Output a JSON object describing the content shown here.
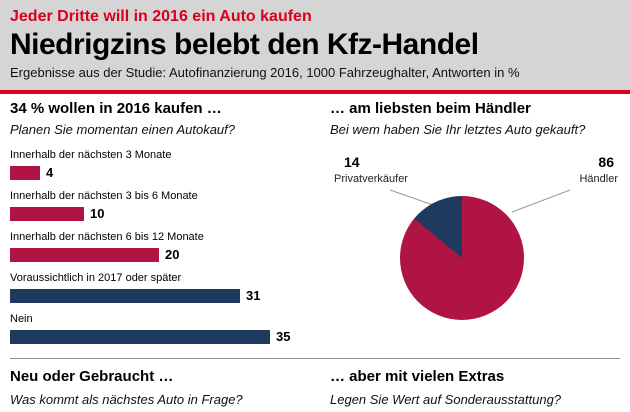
{
  "header": {
    "kicker": "Jeder Dritte will in 2016 ein Auto kaufen",
    "title": "Niedrigzins belebt den Kfz-Handel",
    "subtitle": "Ergebnisse aus der Studie: Autofinanzierung 2016, 1000 Fahrzeughalter, Antworten in %"
  },
  "colors": {
    "bright_red": "#d8001c",
    "chart_red": "#b01442",
    "chart_blue": "#1e3a5f",
    "header_bg": "#d5d5d5"
  },
  "footer": {
    "left": {
      "title": "Neu oder Gebraucht …",
      "question": "Was kommt als nächstes Auto in Frage?"
    },
    "right": {
      "title": "… aber mit vielen Extras",
      "question": "Legen Sie Wert auf Sonderausstattung?"
    }
  },
  "chart_data": [
    {
      "type": "bar",
      "orientation": "horizontal",
      "title": "34 % wollen in 2016 kaufen …",
      "question": "Planen Sie momentan einen Autokauf?",
      "categories": [
        "Innerhalb der nächsten 3 Monate",
        "Innerhalb der nächsten 3 bis 6 Monate",
        "Innerhalb der nächsten 6 bis 12 Monate",
        "Voraussichtlich in 2017 oder später",
        "Nein"
      ],
      "values": [
        4,
        10,
        20,
        31,
        35
      ],
      "bar_colors": [
        "#b01442",
        "#b01442",
        "#b01442",
        "#1e3a5f",
        "#1e3a5f"
      ],
      "xlim": [
        0,
        35
      ],
      "value_labels_shown": true
    },
    {
      "type": "pie",
      "title": "… am liebsten beim Händler",
      "question": "Bei wem haben Sie Ihr letztes Auto gekauft?",
      "labels": [
        "Privatverkäufer",
        "Händler"
      ],
      "values": [
        14,
        86
      ],
      "colors": [
        "#1e3a5f",
        "#b01442"
      ]
    }
  ]
}
